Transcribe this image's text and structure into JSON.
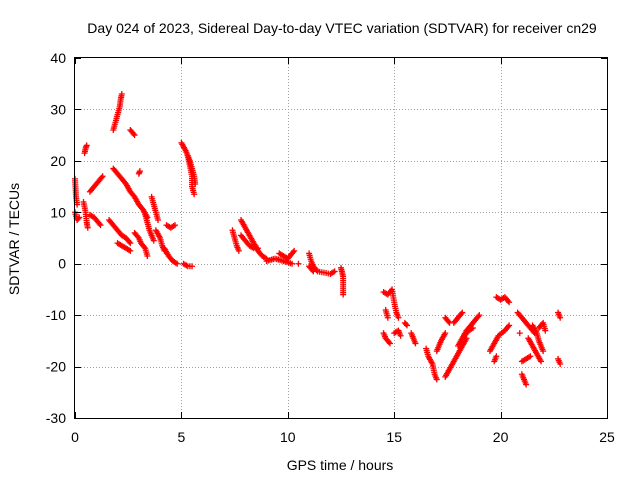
{
  "colors": {
    "series": "#ff0000",
    "grid": "#a0a0a0",
    "axis": "#000000",
    "background": "#ffffff"
  },
  "chart_data": {
    "type": "scatter",
    "title": "Day 024 of 2023, Sidereal Day-to-day VTEC variation (SDTVAR) for receiver cn29",
    "xlabel": "GPS time / hours",
    "ylabel": "SDTVAR / TECUs",
    "xlim": [
      0,
      25
    ],
    "ylim": [
      -30,
      40
    ],
    "xticks": [
      0,
      5,
      10,
      15,
      20,
      25
    ],
    "yticks": [
      -30,
      -20,
      -10,
      0,
      10,
      20,
      30,
      40
    ],
    "grid": true,
    "marker": "+",
    "segments": [
      [
        [
          0.0,
          16.5
        ],
        [
          0.05,
          13.0
        ],
        [
          0.1,
          11.5
        ]
      ],
      [
        [
          0.0,
          10.0
        ],
        [
          0.1,
          8.5
        ],
        [
          0.2,
          9.0
        ]
      ],
      [
        [
          0.4,
          12.0
        ],
        [
          0.5,
          10.0
        ],
        [
          0.55,
          8.0
        ],
        [
          0.6,
          7.0
        ]
      ],
      [
        [
          0.45,
          21.5
        ],
        [
          0.5,
          22.5
        ],
        [
          0.55,
          23.0
        ]
      ],
      [
        [
          0.7,
          14.0
        ],
        [
          0.9,
          15.0
        ],
        [
          1.1,
          16.0
        ],
        [
          1.3,
          17.0
        ]
      ],
      [
        [
          0.7,
          9.5
        ],
        [
          0.9,
          9.0
        ],
        [
          1.1,
          8.0
        ],
        [
          1.2,
          7.5
        ]
      ],
      [
        [
          1.6,
          8.5
        ],
        [
          1.8,
          7.5
        ],
        [
          2.0,
          6.5
        ],
        [
          2.2,
          5.5
        ],
        [
          2.4,
          5.0
        ],
        [
          2.6,
          4.0
        ]
      ],
      [
        [
          1.8,
          18.5
        ],
        [
          2.0,
          17.5
        ],
        [
          2.2,
          16.5
        ],
        [
          2.4,
          15.5
        ],
        [
          2.6,
          14.0
        ],
        [
          2.8,
          13.0
        ],
        [
          3.0,
          11.5
        ],
        [
          3.2,
          10.5
        ],
        [
          3.4,
          9.0
        ]
      ],
      [
        [
          1.8,
          26.0
        ],
        [
          1.9,
          27.5
        ],
        [
          2.0,
          29.0
        ],
        [
          2.1,
          30.5
        ],
        [
          2.15,
          32.0
        ],
        [
          2.2,
          33.0
        ]
      ],
      [
        [
          2.6,
          26.0
        ],
        [
          2.7,
          25.5
        ],
        [
          2.8,
          25.0
        ]
      ],
      [
        [
          3.0,
          17.5
        ],
        [
          3.05,
          18.0
        ]
      ],
      [
        [
          2.0,
          4.0
        ],
        [
          2.2,
          3.5
        ],
        [
          2.4,
          3.0
        ],
        [
          2.6,
          2.5
        ]
      ],
      [
        [
          2.8,
          6.0
        ],
        [
          3.0,
          5.0
        ],
        [
          3.1,
          4.0
        ],
        [
          3.3,
          3.0
        ],
        [
          3.4,
          1.5
        ]
      ],
      [
        [
          3.3,
          9.5
        ],
        [
          3.4,
          8.0
        ],
        [
          3.5,
          6.5
        ],
        [
          3.6,
          5.5
        ],
        [
          3.7,
          4.5
        ]
      ],
      [
        [
          3.6,
          13.0
        ],
        [
          3.7,
          11.5
        ],
        [
          3.8,
          10.0
        ],
        [
          3.9,
          8.5
        ]
      ],
      [
        [
          3.8,
          6.5
        ],
        [
          4.0,
          5.0
        ],
        [
          4.1,
          3.5
        ],
        [
          4.2,
          2.5
        ]
      ],
      [
        [
          4.3,
          7.5
        ],
        [
          4.5,
          7.0
        ],
        [
          4.7,
          7.5
        ]
      ],
      [
        [
          4.2,
          3.0
        ],
        [
          4.4,
          1.5
        ],
        [
          4.6,
          0.5
        ],
        [
          4.8,
          0.0
        ]
      ],
      [
        [
          5.0,
          23.5
        ],
        [
          5.2,
          22.0
        ],
        [
          5.4,
          20.0
        ],
        [
          5.5,
          18.5
        ],
        [
          5.6,
          17.0
        ],
        [
          5.65,
          15.5
        ]
      ],
      [
        [
          5.1,
          0.0
        ],
        [
          5.3,
          -0.5
        ],
        [
          5.5,
          -0.5
        ]
      ],
      [
        [
          5.3,
          21.0
        ],
        [
          5.4,
          19.0
        ],
        [
          5.5,
          17.0
        ],
        [
          5.5,
          15.0
        ],
        [
          5.6,
          13.5
        ]
      ],
      [
        [
          7.4,
          6.5
        ],
        [
          7.5,
          5.0
        ],
        [
          7.6,
          3.5
        ],
        [
          7.7,
          2.5
        ]
      ],
      [
        [
          7.8,
          8.5
        ],
        [
          8.0,
          7.0
        ],
        [
          8.2,
          5.5
        ],
        [
          8.4,
          4.0
        ],
        [
          8.6,
          2.5
        ],
        [
          8.8,
          1.5
        ],
        [
          9.0,
          1.0
        ]
      ],
      [
        [
          7.8,
          5.5
        ],
        [
          8.0,
          4.5
        ],
        [
          8.2,
          3.5
        ],
        [
          8.4,
          3.0
        ]
      ],
      [
        [
          8.6,
          3.0
        ]
      ],
      [
        [
          9.0,
          0.5
        ],
        [
          9.4,
          1.0
        ],
        [
          9.8,
          0.5
        ],
        [
          10.2,
          0.0
        ]
      ],
      [
        [
          9.6,
          2.0
        ],
        [
          9.8,
          1.5
        ],
        [
          10.0,
          1.0
        ],
        [
          10.2,
          2.0
        ],
        [
          10.3,
          2.5
        ]
      ],
      [
        [
          10.5,
          0.0
        ]
      ],
      [
        [
          11.0,
          2.0
        ],
        [
          11.1,
          0.5
        ],
        [
          11.2,
          -0.5
        ],
        [
          11.4,
          -1.5
        ],
        [
          11.8,
          -1.8
        ],
        [
          12.0,
          -2.0
        ],
        [
          12.2,
          -1.5
        ]
      ],
      [
        [
          11.0,
          -0.5
        ],
        [
          11.2,
          -1.5
        ]
      ],
      [
        [
          12.5,
          -0.8
        ],
        [
          12.6,
          -2.5
        ],
        [
          12.6,
          -4.5
        ],
        [
          12.6,
          -6.0
        ]
      ],
      [
        [
          14.5,
          -5.5
        ],
        [
          14.7,
          -6.0
        ],
        [
          14.9,
          -5.0
        ],
        [
          15.0,
          -7.5
        ],
        [
          15.1,
          -9.5
        ],
        [
          15.2,
          -10.5
        ]
      ],
      [
        [
          14.5,
          -13.5
        ],
        [
          14.6,
          -14.5
        ],
        [
          14.8,
          -15.5
        ]
      ],
      [
        [
          14.6,
          -9.0
        ],
        [
          14.7,
          -10.5
        ]
      ],
      [
        [
          15.0,
          -13.5
        ],
        [
          15.2,
          -13.0
        ],
        [
          15.3,
          -14.0
        ]
      ],
      [
        [
          15.5,
          -11.5
        ],
        [
          15.6,
          -12.0
        ]
      ],
      [
        [
          15.8,
          -13.5
        ],
        [
          15.9,
          -14.5
        ],
        [
          16.0,
          -15.5
        ]
      ],
      [
        [
          16.5,
          -16.5
        ],
        [
          16.6,
          -18.0
        ],
        [
          16.8,
          -19.5
        ],
        [
          16.9,
          -21.5
        ],
        [
          17.0,
          -22.5
        ]
      ],
      [
        [
          17.0,
          -17.0
        ],
        [
          17.2,
          -15.0
        ],
        [
          17.4,
          -13.5
        ]
      ],
      [
        [
          17.4,
          -10.5
        ],
        [
          17.6,
          -11.5
        ]
      ],
      [
        [
          17.4,
          -22.0
        ],
        [
          17.6,
          -20.5
        ],
        [
          17.8,
          -19.0
        ],
        [
          18.0,
          -17.5
        ],
        [
          18.2,
          -16.0
        ],
        [
          18.4,
          -14.5
        ]
      ],
      [
        [
          17.8,
          -11.5
        ],
        [
          18.0,
          -10.5
        ],
        [
          18.2,
          -9.5
        ]
      ],
      [
        [
          18.0,
          -16.0
        ],
        [
          18.2,
          -14.5
        ],
        [
          18.4,
          -13.0
        ],
        [
          18.6,
          -12.0
        ],
        [
          18.8,
          -11.0
        ],
        [
          19.0,
          -10.0
        ]
      ],
      [
        [
          18.3,
          -14.0
        ],
        [
          18.5,
          -13.0
        ],
        [
          18.7,
          -12.5
        ]
      ],
      [
        [
          19.5,
          -17.0
        ],
        [
          19.7,
          -15.5
        ],
        [
          19.9,
          -14.0
        ],
        [
          20.2,
          -13.0
        ],
        [
          20.4,
          -12.0
        ]
      ],
      [
        [
          19.7,
          -19.0
        ],
        [
          19.8,
          -18.0
        ]
      ],
      [
        [
          19.8,
          -6.5
        ],
        [
          20.0,
          -7.0
        ],
        [
          20.2,
          -6.5
        ],
        [
          20.4,
          -7.5
        ]
      ],
      [
        [
          20.8,
          -9.5
        ],
        [
          21.0,
          -10.5
        ],
        [
          21.2,
          -11.5
        ],
        [
          21.4,
          -12.5
        ],
        [
          21.6,
          -13.5
        ]
      ],
      [
        [
          20.9,
          -13.5
        ]
      ],
      [
        [
          21.0,
          -19.0
        ],
        [
          21.2,
          -18.5
        ],
        [
          21.4,
          -18.0
        ]
      ],
      [
        [
          21.0,
          -21.5
        ],
        [
          21.1,
          -22.5
        ],
        [
          21.2,
          -23.5
        ]
      ],
      [
        [
          21.3,
          -14.5
        ],
        [
          21.5,
          -16.0
        ],
        [
          21.7,
          -17.5
        ],
        [
          21.9,
          -19.0
        ]
      ],
      [
        [
          21.5,
          -12.0
        ],
        [
          21.7,
          -13.5
        ],
        [
          21.8,
          -15.0
        ],
        [
          22.0,
          -17.0
        ]
      ],
      [
        [
          21.8,
          -12.5
        ],
        [
          22.0,
          -11.5
        ],
        [
          22.1,
          -13.0
        ]
      ],
      [
        [
          22.7,
          -9.5
        ],
        [
          22.8,
          -10.5
        ]
      ],
      [
        [
          22.7,
          -18.5
        ],
        [
          22.8,
          -19.5
        ]
      ]
    ]
  }
}
